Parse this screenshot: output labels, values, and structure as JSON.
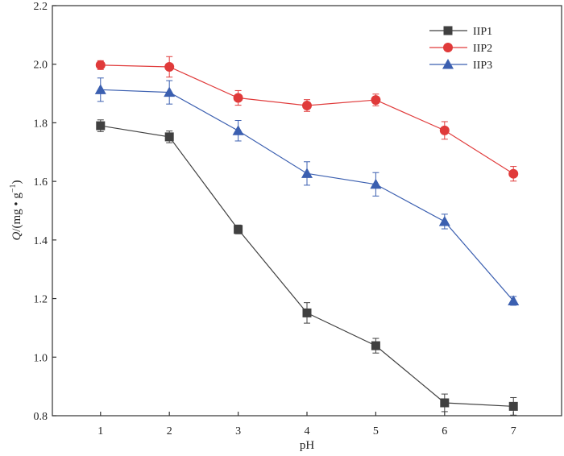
{
  "chart_data": {
    "type": "line",
    "xlabel": "pH",
    "ylabel": {
      "italic": "Q",
      "main": "/(mg • g",
      "sup": "−1",
      "close": ")"
    },
    "xlim": [
      0.3,
      7.7
    ],
    "ylim": [
      0.8,
      2.2
    ],
    "x_ticks": [
      "1",
      "2",
      "3",
      "4",
      "5",
      "6",
      "7"
    ],
    "y_ticks": [
      "0.8",
      "1.0",
      "1.2",
      "1.4",
      "1.6",
      "1.8",
      "2.0",
      "2.2"
    ],
    "x": [
      1,
      2,
      3,
      4,
      5,
      6,
      7
    ],
    "grid": false,
    "legend_position": "top-right",
    "series": [
      {
        "name": "IIP1",
        "color": "#404040",
        "marker": "square",
        "values": [
          1.79,
          1.752,
          1.436,
          1.151,
          1.039,
          0.844,
          0.832
        ],
        "errors": [
          0.02,
          0.02,
          0.015,
          0.035,
          0.025,
          0.03,
          0.03
        ]
      },
      {
        "name": "IIP2",
        "color": "#e03a3a",
        "marker": "circle",
        "values": [
          1.997,
          1.991,
          1.885,
          1.859,
          1.878,
          1.774,
          1.626
        ],
        "errors": [
          0.015,
          0.035,
          0.025,
          0.02,
          0.02,
          0.03,
          0.025
        ]
      },
      {
        "name": "IIP3",
        "color": "#3b5fb0",
        "marker": "triangle",
        "values": [
          1.913,
          1.904,
          1.773,
          1.627,
          1.59,
          1.463,
          1.192
        ],
        "errors": [
          0.04,
          0.04,
          0.035,
          0.04,
          0.04,
          0.025,
          0.015
        ]
      }
    ]
  }
}
